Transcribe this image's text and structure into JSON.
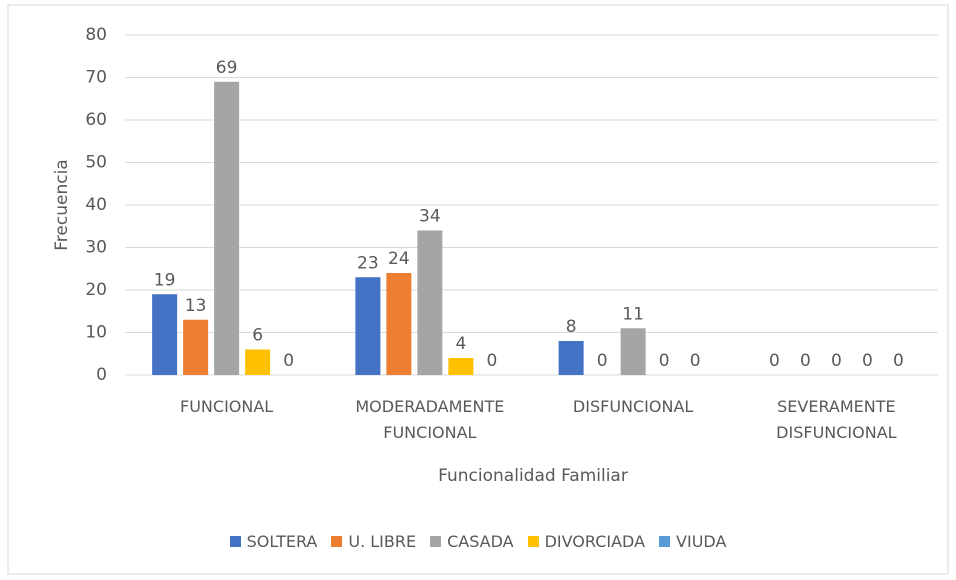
{
  "chart_data": {
    "type": "bar",
    "categories": [
      "FUNCIONAL",
      "MODERADAMENTE FUNCIONAL",
      "DISFUNCIONAL",
      "SEVERAMENTE DISFUNCIONAL"
    ],
    "series": [
      {
        "name": "SOLTERA",
        "color": "#4472c4",
        "values": [
          19,
          23,
          8,
          0
        ]
      },
      {
        "name": "U. LIBRE",
        "color": "#ed7d31",
        "values": [
          13,
          24,
          0,
          0
        ]
      },
      {
        "name": "CASADA",
        "color": "#a5a5a5",
        "values": [
          69,
          34,
          11,
          0
        ]
      },
      {
        "name": "DIVORCIADA",
        "color": "#ffc000",
        "values": [
          6,
          4,
          0,
          0
        ]
      },
      {
        "name": "VIUDA",
        "color": "#5b9bd5",
        "values": [
          0,
          0,
          0,
          0
        ]
      }
    ],
    "ylabel": "Frecuencia",
    "xlabel": "Funcionalidad Familiar",
    "ylim": [
      0,
      80
    ],
    "yticks": [
      0,
      10,
      20,
      30,
      40,
      50,
      60,
      70,
      80
    ],
    "grid": true,
    "legend": "bottom"
  }
}
